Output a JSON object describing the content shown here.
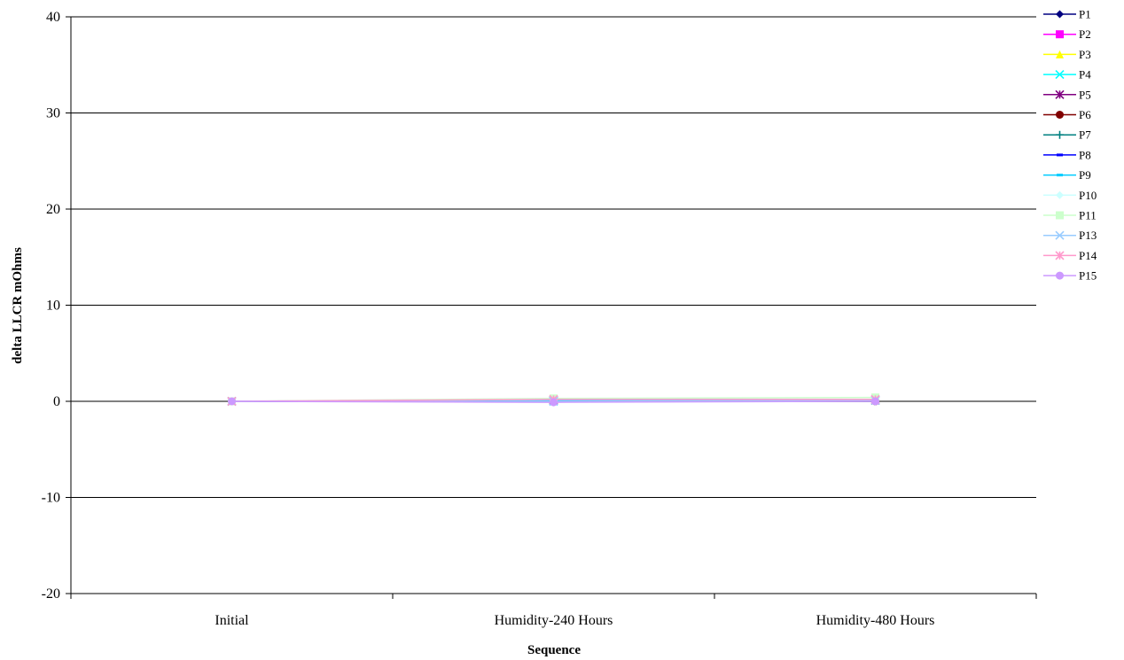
{
  "chart_data": {
    "type": "line",
    "title": "",
    "xlabel": "Sequence",
    "ylabel": "delta LLCR mOhms",
    "categories": [
      "Initial",
      "Humidity-240 Hours",
      "Humidity-480 Hours"
    ],
    "ylim": [
      -20,
      40
    ],
    "yticks": [
      40,
      30,
      20,
      10,
      0,
      -10,
      -20
    ],
    "grid": "horizontal",
    "legend_position": "right",
    "series": [
      {
        "name": "P1",
        "color": "#000080",
        "marker": "diamond",
        "values": [
          0,
          0.1,
          0.1
        ]
      },
      {
        "name": "P2",
        "color": "#ff00ff",
        "marker": "square",
        "values": [
          0,
          0.2,
          0.2
        ]
      },
      {
        "name": "P3",
        "color": "#ffff00",
        "marker": "triangle",
        "values": [
          0,
          0.1,
          0.2
        ]
      },
      {
        "name": "P4",
        "color": "#00ffff",
        "marker": "x",
        "values": [
          0,
          0.0,
          0.1
        ]
      },
      {
        "name": "P5",
        "color": "#800080",
        "marker": "star",
        "values": [
          0,
          0.1,
          0.1
        ]
      },
      {
        "name": "P6",
        "color": "#800000",
        "marker": "circle",
        "values": [
          0,
          0.0,
          0.0
        ]
      },
      {
        "name": "P7",
        "color": "#008080",
        "marker": "plus",
        "values": [
          0,
          0.1,
          0.0
        ]
      },
      {
        "name": "P8",
        "color": "#0000ff",
        "marker": "dash",
        "values": [
          0,
          0.0,
          0.1
        ]
      },
      {
        "name": "P9",
        "color": "#00ccff",
        "marker": "dash",
        "values": [
          0,
          0.1,
          0.1
        ]
      },
      {
        "name": "P10",
        "color": "#ccffff",
        "marker": "diamond",
        "values": [
          0,
          0.2,
          0.2
        ]
      },
      {
        "name": "P11",
        "color": "#ccffcc",
        "marker": "square",
        "values": [
          0,
          0.3,
          0.4
        ]
      },
      {
        "name": "P13",
        "color": "#99ccff",
        "marker": "x",
        "values": [
          0,
          0.0,
          0.1
        ]
      },
      {
        "name": "P14",
        "color": "#ff99cc",
        "marker": "star",
        "values": [
          0,
          0.2,
          0.2
        ]
      },
      {
        "name": "P15",
        "color": "#cc99ff",
        "marker": "circle",
        "values": [
          0,
          -0.1,
          0.0
        ]
      }
    ]
  }
}
